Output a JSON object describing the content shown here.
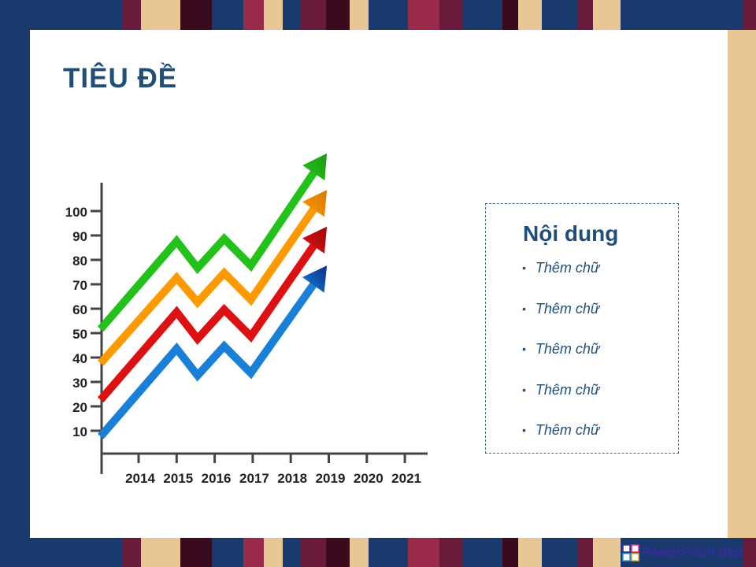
{
  "slide": {
    "title": "TIÊU ĐỀ"
  },
  "content": {
    "title": "Nội dung",
    "bullets": [
      "Thêm chữ",
      "Thêm chữ",
      "Thêm chữ",
      "Thêm chữ",
      "Thêm chữ"
    ]
  },
  "logo": {
    "text": "PowerPoint đẹp"
  },
  "colors": {
    "title": "#1f4e79",
    "green": "#22c21a",
    "orange": "#ff9900",
    "red": "#dd1111",
    "blue": "#1a7fd6",
    "dark_blue": "#0a2f8c"
  },
  "chart_data": {
    "type": "line",
    "categories": [
      "2014",
      "2015",
      "2016",
      "2017",
      "2018",
      "2019",
      "2020",
      "2021"
    ],
    "y_ticks": [
      10,
      20,
      30,
      40,
      50,
      60,
      70,
      80,
      90,
      100
    ],
    "ylim": [
      0,
      110
    ],
    "series": [
      {
        "color": "#22c21a",
        "points": [
          [
            2013.0,
            51
          ],
          [
            2015.0,
            87
          ],
          [
            2015.55,
            76
          ],
          [
            2016.25,
            88
          ],
          [
            2016.95,
            77
          ],
          [
            2018.95,
            123
          ]
        ]
      },
      {
        "color": "#ff9900",
        "points": [
          [
            2013.0,
            37
          ],
          [
            2015.0,
            72
          ],
          [
            2015.55,
            62
          ],
          [
            2016.25,
            74
          ],
          [
            2016.95,
            63
          ],
          [
            2018.95,
            108
          ]
        ]
      },
      {
        "color": "#dd1111",
        "points": [
          [
            2013.0,
            22
          ],
          [
            2015.0,
            58
          ],
          [
            2015.55,
            47
          ],
          [
            2016.25,
            59
          ],
          [
            2016.95,
            48
          ],
          [
            2018.95,
            93
          ]
        ]
      },
      {
        "color": "#1a7fd6",
        "points": [
          [
            2013.0,
            7
          ],
          [
            2015.0,
            43
          ],
          [
            2015.55,
            32
          ],
          [
            2016.25,
            44
          ],
          [
            2016.95,
            33
          ],
          [
            2018.95,
            77
          ]
        ]
      }
    ]
  }
}
